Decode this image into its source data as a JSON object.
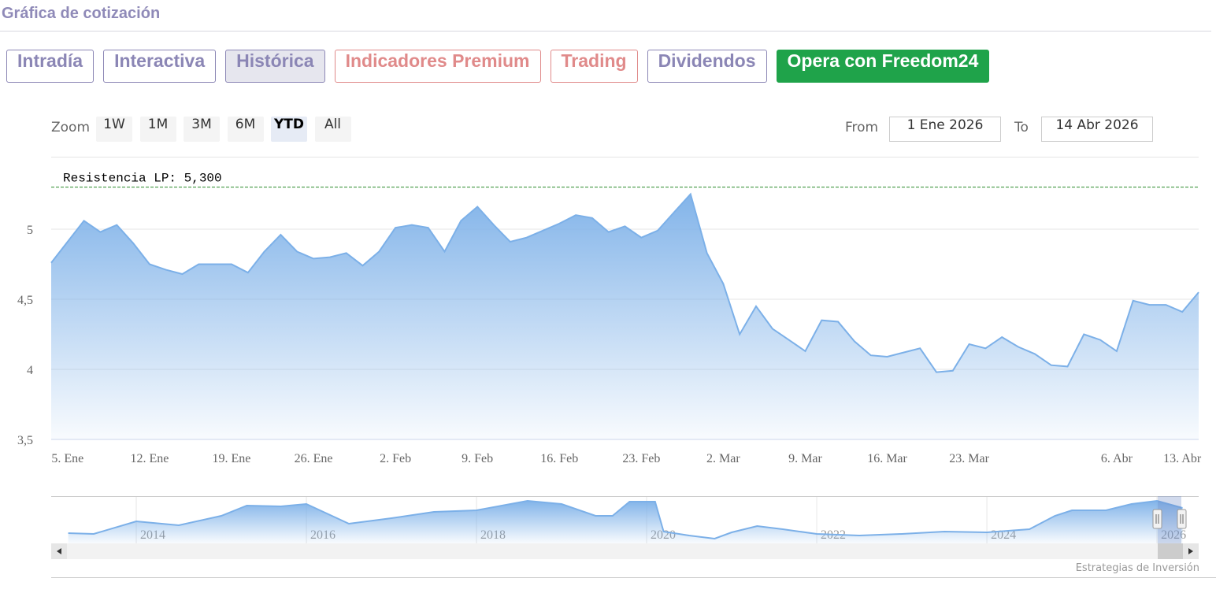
{
  "header": {
    "title": "Gráfica de cotización"
  },
  "tabs": [
    {
      "label": "Intradía",
      "color": "#8b86b5"
    },
    {
      "label": "Interactiva",
      "color": "#8b86b5"
    },
    {
      "label": "Histórica",
      "color": "#8b86b5"
    },
    {
      "label": "Indicadores Premium",
      "color": "#e08a8a"
    },
    {
      "label": "Trading",
      "color": "#e08a8a"
    },
    {
      "label": "Dividendos",
      "color": "#8b86b5"
    },
    {
      "label": "Opera con Freedom24",
      "color": "#1fa34a",
      "filled": true
    }
  ],
  "active_tab": 2,
  "range_selector": {
    "zoom_label": "Zoom",
    "buttons": [
      "1W",
      "1M",
      "3M",
      "6M",
      "YTD",
      "All"
    ],
    "active_button": 4,
    "from_label": "From",
    "from": "1 Ene 2026",
    "to_label": "To",
    "to": "14 Abr 2026"
  },
  "chart_data": [
    {
      "type": "area",
      "color": "#7cb0e8",
      "categories": [
        null,
        "5. Ene",
        null,
        null,
        null,
        null,
        "12. Ene",
        null,
        null,
        null,
        null,
        "19. Ene",
        null,
        null,
        null,
        null,
        "26. Ene",
        null,
        null,
        null,
        null,
        "2. Feb",
        null,
        null,
        null,
        null,
        "9. Feb",
        null,
        null,
        null,
        null,
        "16. Feb",
        null,
        null,
        null,
        null,
        "23. Feb",
        null,
        null,
        null,
        null,
        "2. Mar",
        null,
        null,
        null,
        null,
        "9. Mar",
        null,
        null,
        null,
        null,
        "16. Mar",
        null,
        null,
        null,
        null,
        "23. Mar",
        null,
        null,
        null,
        null,
        null,
        null,
        null,
        null,
        "6. Abr",
        null,
        null,
        null,
        "13. Abr",
        null
      ],
      "values": [
        4.76,
        4.91,
        5.06,
        4.98,
        5.03,
        4.9,
        4.75,
        4.71,
        4.68,
        4.75,
        4.75,
        4.75,
        4.69,
        4.84,
        4.96,
        4.84,
        4.79,
        4.8,
        4.83,
        4.74,
        4.84,
        5.01,
        5.03,
        5.01,
        4.84,
        5.06,
        5.16,
        5.03,
        4.91,
        4.94,
        4.99,
        5.04,
        5.1,
        5.08,
        4.98,
        5.02,
        4.94,
        4.99,
        5.12,
        5.25,
        4.83,
        4.61,
        4.25,
        4.45,
        4.29,
        4.21,
        4.13,
        4.35,
        4.34,
        4.2,
        4.1,
        4.09,
        4.12,
        4.15,
        3.98,
        3.99,
        4.18,
        4.15,
        4.23,
        4.16,
        4.11,
        4.03,
        4.02,
        4.25,
        4.21,
        4.13,
        4.49,
        4.46,
        4.46,
        4.41,
        4.55
      ],
      "ylim": [
        3.5,
        5.5
      ],
      "yticks": [
        {
          "value": 3.5,
          "label": "3,5"
        },
        4,
        {
          "value": 4.5,
          "label": "4,5"
        },
        5
      ],
      "grid": true,
      "plot_lines": [
        {
          "value": 5.3,
          "label": "Resistencia LP: 5,300",
          "color": "#2a8a2a"
        }
      ]
    },
    {
      "type": "area",
      "color": "#7cb0e8",
      "x": [
        2013.2,
        2013.5,
        2014,
        2014.5,
        2015,
        2015.3,
        2015.7,
        2016,
        2016.5,
        2017,
        2017.5,
        2018,
        2018.3,
        2018.6,
        2019,
        2019.4,
        2019.6,
        2019.8,
        2020.1,
        2020.2,
        2020.5,
        2020.8,
        2021,
        2021.3,
        2021.6,
        2022,
        2022.5,
        2023,
        2023.5,
        2024,
        2024.5,
        2024.8,
        2025,
        2025.4,
        2025.7,
        2026,
        2026.3
      ],
      "values": [
        1.3,
        1.2,
        2.8,
        2.3,
        3.5,
        4.8,
        4.7,
        5.0,
        2.5,
        3.2,
        4.0,
        4.2,
        4.8,
        5.4,
        5.0,
        3.5,
        3.5,
        5.3,
        5.3,
        1.5,
        1.0,
        0.6,
        1.4,
        2.2,
        1.8,
        1.2,
        1.0,
        1.2,
        1.5,
        1.4,
        1.8,
        3.5,
        4.2,
        4.2,
        5.0,
        5.4,
        4.5
      ],
      "xlim": [
        2013,
        2026.49
      ],
      "ylim": [
        0,
        6
      ],
      "xticks": [
        2014,
        2016,
        2018,
        2020,
        2022,
        2024,
        2026
      ]
    }
  ],
  "credit": "Estrategias de Inversión"
}
